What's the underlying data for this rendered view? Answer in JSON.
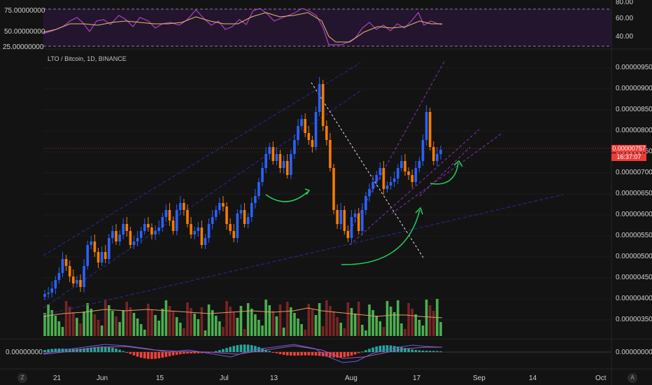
{
  "legend": {
    "text": "LTO / Bitcoin, 1D, BINANCE"
  },
  "rsi_axis": {
    "left": [
      "75.00000000",
      "50.00000000",
      "25.00000000"
    ],
    "right": [
      "80.00",
      "60.00",
      "40.00"
    ]
  },
  "price_axis": [
    "0.00000950",
    "0.00000900",
    "0.00000850",
    "0.00000800",
    "0.00000750",
    "0.00000700",
    "0.00000650",
    "0.00000600",
    "0.00000550",
    "0.00000500",
    "0.00000450",
    "0.00000400",
    "0.00000350"
  ],
  "current_price": {
    "value": "0.00000757",
    "countdown": "16:37:07",
    "color": "#ef3b36"
  },
  "macd_axis": {
    "left": "0.00000000",
    "right": "0.00000000"
  },
  "time_axis": [
    "21",
    "Jun",
    "15",
    "Jul",
    "13",
    "Aug",
    "17",
    "Sep",
    "14",
    "Oct"
  ],
  "corner_buttons": {
    "left": "Z",
    "right": "A"
  },
  "colors": {
    "up": "#2962ff",
    "down": "#f57c00",
    "vol_up": "#4caf50",
    "vol_down": "#7a2424",
    "rsi_band": "#2a1a3a",
    "accent_green": "#22d35a"
  }
}
